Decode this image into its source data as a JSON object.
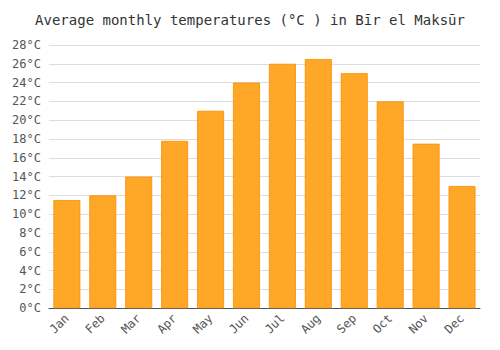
{
  "chart_data": {
    "type": "bar",
    "title": "Average monthly temperatures (°C ) in Bīr el Maksūr",
    "categories": [
      "Jan",
      "Feb",
      "Mar",
      "Apr",
      "May",
      "Jun",
      "Jul",
      "Aug",
      "Sep",
      "Oct",
      "Nov",
      "Dec"
    ],
    "values": [
      11.5,
      12.0,
      14.0,
      17.8,
      21.0,
      24.0,
      26.0,
      26.5,
      25.0,
      22.0,
      17.5,
      13.0
    ],
    "color": "#FFA726",
    "ylim": [
      0,
      28
    ],
    "yticks": [
      {
        "value": 0,
        "label": "0°C"
      },
      {
        "value": 2,
        "label": "2°C"
      },
      {
        "value": 4,
        "label": "4°C"
      },
      {
        "value": 6,
        "label": "6°C"
      },
      {
        "value": 8,
        "label": "8°C"
      },
      {
        "value": 10,
        "label": "10°C"
      },
      {
        "value": 12,
        "label": "12°C"
      },
      {
        "value": 14,
        "label": "14°C"
      },
      {
        "value": 16,
        "label": "16°C"
      },
      {
        "value": 18,
        "label": "18°C"
      },
      {
        "value": 20,
        "label": "20°C"
      },
      {
        "value": 22,
        "label": "22°C"
      },
      {
        "value": 24,
        "label": "24°C"
      },
      {
        "value": 26,
        "label": "26°C"
      },
      {
        "value": 28,
        "label": "28°C"
      }
    ],
    "grid": true
  }
}
